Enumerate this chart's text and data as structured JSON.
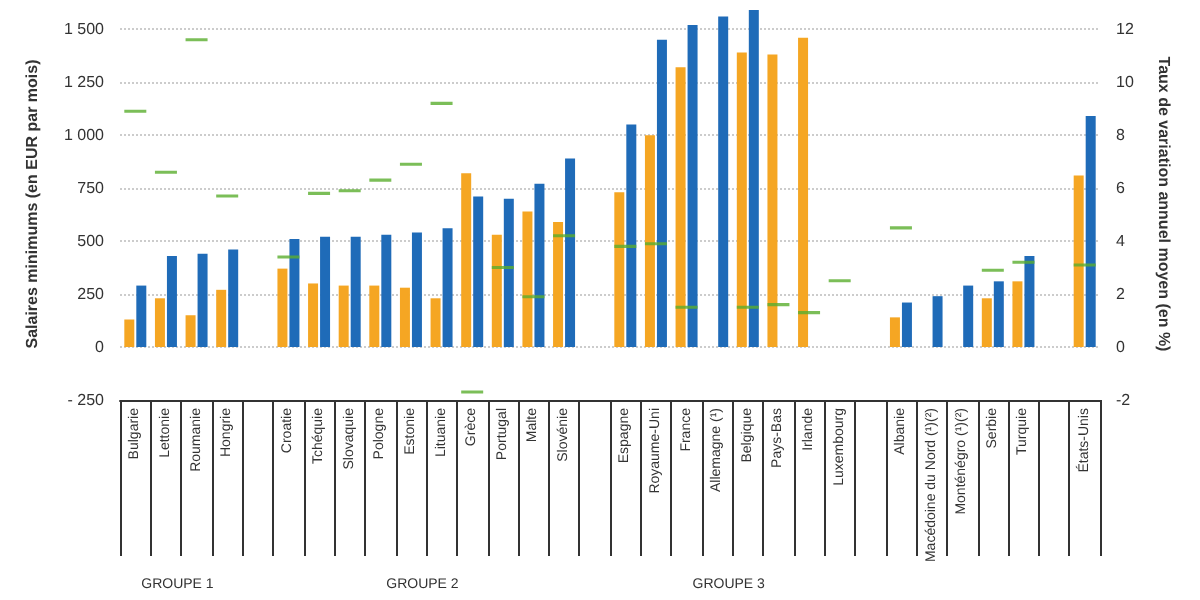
{
  "chart_data": {
    "type": "bar",
    "ylabel": "Salaires minimums (en EUR par mois)",
    "y2label": "Taux de variation annuel moyen (en %)",
    "categories": [
      "Bulgarie",
      "Lettonie",
      "Roumanie",
      "Hongrie",
      null,
      "Croatie",
      "Tchéquie",
      "Slovaquie",
      "Pologne",
      "Estonie",
      "Lituanie",
      "Grèce",
      "Portugal",
      "Malte",
      "Slovénie",
      null,
      "Espagne",
      "Royaume-Uni",
      "France",
      "Allemagne (¹)",
      "Belgique",
      "Pays-Bas",
      "Irlande",
      "Luxembourg",
      null,
      "Albanie",
      "Macédoine du Nord (¹)(²)",
      "Monténégro (¹)(²)",
      "Serbie",
      "Turquie",
      null,
      "États-Unis"
    ],
    "series": [
      {
        "color": "#f5a623",
        "values": [
          130,
          230,
          150,
          270,
          null,
          370,
          300,
          290,
          290,
          280,
          230,
          820,
          530,
          640,
          590,
          null,
          730,
          1000,
          1320,
          null,
          1390,
          1380,
          1460,
          null,
          null,
          140,
          null,
          null,
          230,
          310,
          null,
          810
        ]
      },
      {
        "color": "#1f6bb8",
        "values": [
          290,
          430,
          440,
          460,
          null,
          510,
          520,
          520,
          530,
          540,
          560,
          710,
          700,
          770,
          890,
          null,
          1050,
          1450,
          1520,
          1560,
          1590,
          null,
          null,
          null,
          null,
          210,
          240,
          290,
          310,
          430,
          null,
          1090
        ]
      },
      {
        "type": "scatter",
        "axis": "y2",
        "color": "#5aae2e",
        "values": [
          8.9,
          6.6,
          11.6,
          5.7,
          null,
          3.4,
          5.8,
          5.9,
          6.3,
          6.9,
          9.2,
          -1.7,
          3.0,
          1.9,
          4.2,
          null,
          3.8,
          3.9,
          1.5,
          null,
          1.5,
          1.6,
          1.3,
          2.5,
          null,
          4.5,
          null,
          null,
          2.9,
          3.2,
          null,
          3.1
        ]
      }
    ],
    "ylim": [
      -250,
      1600
    ],
    "yticks": [
      {
        "value": -250,
        "label": "- 250"
      },
      0,
      250,
      500,
      750,
      {
        "value": 1000,
        "label": "1 000"
      },
      {
        "value": 1250,
        "label": "1 250"
      },
      {
        "value": 1500,
        "label": "1 500"
      }
    ],
    "y2lim": [
      -2,
      12.8
    ],
    "y2ticks": [
      -2,
      0,
      2,
      4,
      6,
      8,
      10,
      12
    ],
    "grid": "y",
    "annotations": [
      "GROUPE 1",
      "GROUPE 2",
      "GROUPE 3"
    ]
  }
}
